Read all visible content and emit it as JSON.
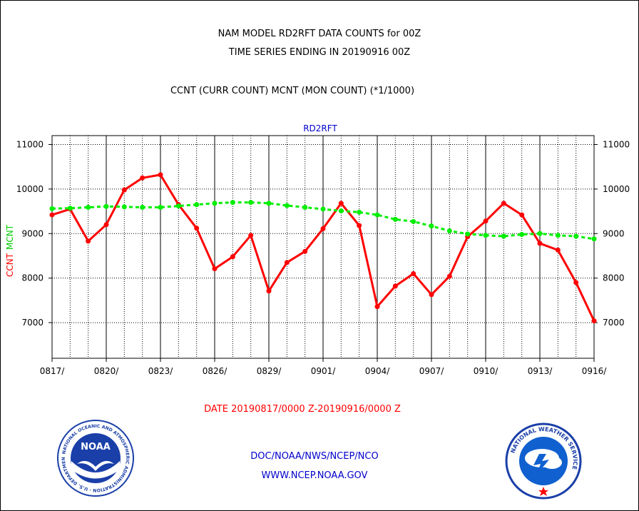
{
  "header": {
    "title_line1": "NAM MODEL RD2RFT DATA COUNTS for 00Z",
    "title_line2": "TIME SERIES ENDING IN 20190916 00Z",
    "subtitle": "CCNT (CURR COUNT) MCNT (MON COUNT) (*1/1000)"
  },
  "chart_data": {
    "type": "line",
    "title": "RD2RFT",
    "ylabel_ccnt": "CCNT",
    "ylabel_mcnt": "MCNT",
    "xlabel": "DATE 20190817/0000 Z-20190916/0000 Z",
    "ylim": [
      6200,
      11200
    ],
    "xlim": [
      0,
      30
    ],
    "y_ticks": [
      7000,
      8000,
      9000,
      10000,
      11000
    ],
    "x_ticks": [
      {
        "pos": 0,
        "label": "0817/"
      },
      {
        "pos": 3,
        "label": "0820/"
      },
      {
        "pos": 6,
        "label": "0823/"
      },
      {
        "pos": 9,
        "label": "0826/"
      },
      {
        "pos": 12,
        "label": "0829/"
      },
      {
        "pos": 15,
        "label": "0901/"
      },
      {
        "pos": 18,
        "label": "0904/"
      },
      {
        "pos": 21,
        "label": "0907/"
      },
      {
        "pos": 24,
        "label": "0910/"
      },
      {
        "pos": 27,
        "label": "0913/"
      },
      {
        "pos": 30,
        "label": "0916/"
      }
    ],
    "grid": true,
    "series": [
      {
        "name": "CCNT",
        "color": "#ff0000",
        "style": "solid",
        "x": [
          0,
          1,
          2,
          3,
          4,
          5,
          6,
          7,
          8,
          9,
          10,
          11,
          12,
          13,
          14,
          15,
          16,
          17,
          18,
          19,
          20,
          21,
          22,
          23,
          24,
          25,
          26,
          27,
          28,
          29,
          30
        ],
        "values": [
          9420,
          9550,
          8830,
          9200,
          9980,
          10250,
          10320,
          9650,
          9120,
          8210,
          8480,
          8960,
          7710,
          8350,
          8600,
          9110,
          9680,
          9180,
          7360,
          7820,
          8100,
          7630,
          8040,
          8930,
          9280,
          9680,
          9420,
          8780,
          8630,
          7900,
          7040
        ]
      },
      {
        "name": "MCNT",
        "color": "#00ee00",
        "style": "dashed",
        "x": [
          0,
          1,
          2,
          3,
          4,
          5,
          6,
          7,
          8,
          9,
          10,
          11,
          12,
          13,
          14,
          15,
          16,
          17,
          18,
          19,
          20,
          21,
          22,
          23,
          24,
          25,
          26,
          27,
          28,
          29,
          30
        ],
        "values": [
          9560,
          9570,
          9590,
          9610,
          9600,
          9590,
          9590,
          9620,
          9650,
          9680,
          9700,
          9700,
          9680,
          9630,
          9590,
          9550,
          9510,
          9480,
          9420,
          9320,
          9270,
          9170,
          9060,
          8990,
          8960,
          8940,
          8980,
          9000,
          8960,
          8940,
          8880
        ]
      }
    ]
  },
  "footer": {
    "date_range": "DATE 20190817/0000 Z-20190916/0000 Z",
    "org": "DOC/NOAA/NWS/NCEP/NCO",
    "url": "WWW.NCEP.NOAA.GOV"
  },
  "logos": {
    "noaa_text": "NOAA",
    "noaa_ring": "NATIONAL OCEANIC AND ATMOSPHERIC ADMINISTRATION · U.S. DEPARTMENT OF COMMERCE",
    "nws_ring": "NATIONAL WEATHER SERVICE"
  },
  "colors": {
    "ccnt": "#ff0000",
    "mcnt": "#00ee00",
    "blue_text": "#0000cc",
    "noaa_blue": "#1a3fa8",
    "nws_blue": "#1060d0"
  }
}
